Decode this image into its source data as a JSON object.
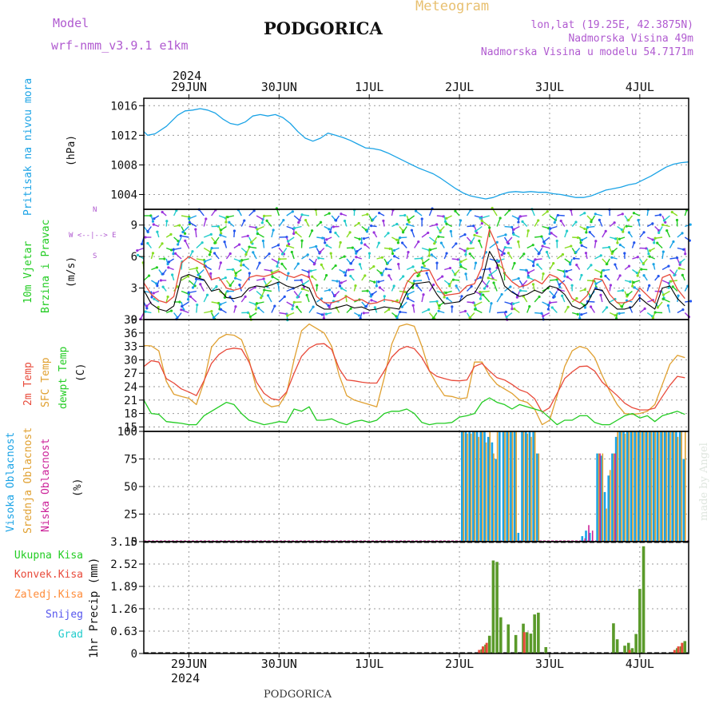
{
  "header": {
    "model_label": "Model",
    "model_name": "wrf-nmm_v3.9.1 e1km",
    "station": "PODGORICA",
    "meteogram": "Meteogram",
    "coords": "lon,lat (19.25E, 42.3875N)",
    "altitude": "Nadmorska Visina 49m",
    "model_altitude": "Nadmorska Visina u modelu 54.7171m",
    "footer_station": "PODGORICA",
    "credit": "made by Angel"
  },
  "colors": {
    "pressure": "#1aa3e6",
    "wind_speed": "#000000",
    "wind_gust": "#e84a3a",
    "t2m": "#e84a3a",
    "tsfc": "#e0a030",
    "dewpt": "#22cc22",
    "cloud_high": "#1aa3e6",
    "cloud_mid": "#e0a030",
    "cloud_low": "#cc2299",
    "precip_total": "#5a9a2a",
    "precip_conv": "#e84a3a"
  },
  "time_axis": {
    "year": "2024",
    "day_labels": [
      "29JUN",
      "30JUN",
      "1JUL",
      "2JUL",
      "3JUL",
      "4JUL"
    ],
    "day_positions_h": [
      12,
      36,
      60,
      84,
      108,
      132
    ],
    "range_h": [
      0,
      145
    ]
  },
  "panels": {
    "pressure": {
      "labels": [
        "Pritisak na nivou mora"
      ],
      "unit": "(hPa)",
      "yticks": [
        "1004",
        "1008",
        "1012",
        "1016"
      ]
    },
    "wind": {
      "labels": [
        "10m Vjetar",
        "Brzina i Pravac"
      ],
      "unit": "(m/s)",
      "yticks": [
        "0",
        "3",
        "6",
        "9"
      ],
      "compass_lines": [
        "N",
        "^",
        "|",
        "W <--|--> E",
        "|",
        "v",
        "S"
      ]
    },
    "temperature": {
      "labels": [
        "2m Temp",
        "SFC Temp",
        "dewpt Temp"
      ],
      "unit": "(C)",
      "yticks": [
        "15",
        "18",
        "21",
        "24",
        "27",
        "30",
        "33",
        "36",
        "39"
      ]
    },
    "cloud": {
      "labels": [
        "Visoka Oblacnost",
        "Srednja Oblacnost",
        "Niska Oblacnost"
      ],
      "unit": "(%)",
      "yticks": [
        "0",
        "25",
        "50",
        "75",
        "100"
      ]
    },
    "precip": {
      "legend": [
        "Ukupna Kisa",
        "Konvek.Kisa",
        "Zaledj.Kisa",
        "Snijeg",
        "Grad"
      ],
      "legend_colors": [
        "#22cc22",
        "#e84a3a",
        "#ff8c3a",
        "#5555ee",
        "#22cccc"
      ],
      "axis_label": "1hr Precip (mm)",
      "yticks": [
        "0",
        "0.63",
        "1.26",
        "1.89",
        "2.52",
        "3.15"
      ]
    }
  },
  "chart_data": [
    {
      "type": "line",
      "title": "Pritisak na nivou mora",
      "ylabel": "(hPa)",
      "ylim": [
        1002,
        1017
      ],
      "x": [
        0,
        1,
        3,
        6,
        9,
        11,
        13,
        15,
        17,
        19,
        21,
        23,
        25,
        27,
        29,
        31,
        33,
        35,
        37,
        39,
        41,
        43,
        45,
        47,
        49,
        51,
        53,
        55,
        57,
        59,
        61,
        63,
        65,
        67,
        69,
        71,
        73,
        75,
        77,
        79,
        81,
        83,
        85,
        87,
        89,
        91,
        93,
        95,
        97,
        99,
        101,
        103,
        105,
        107,
        109,
        111,
        113,
        115,
        117,
        119,
        121,
        123,
        125,
        127,
        129,
        131,
        133,
        135,
        137,
        139,
        141,
        143,
        145
      ],
      "series": [
        {
          "values": [
            1012.5,
            1012.0,
            1012.2,
            1013.2,
            1014.7,
            1015.3,
            1015.4,
            1015.6,
            1015.4,
            1015.0,
            1014.2,
            1013.6,
            1013.4,
            1013.8,
            1014.6,
            1014.8,
            1014.6,
            1014.8,
            1014.4,
            1013.6,
            1012.5,
            1011.6,
            1011.2,
            1011.6,
            1012.3,
            1012.0,
            1011.7,
            1011.3,
            1010.8,
            1010.3,
            1010.2,
            1010.0,
            1009.6,
            1009.1,
            1008.6,
            1008.1,
            1007.6,
            1007.2,
            1006.8,
            1006.2,
            1005.5,
            1004.8,
            1004.2,
            1003.8,
            1003.6,
            1003.4,
            1003.6,
            1004.0,
            1004.3,
            1004.4,
            1004.3,
            1004.4,
            1004.3,
            1004.3,
            1004.1,
            1004.0,
            1003.8,
            1003.6,
            1003.6,
            1003.8,
            1004.2,
            1004.6,
            1004.8,
            1005.0,
            1005.3,
            1005.5,
            1006.0,
            1006.5,
            1007.1,
            1007.7,
            1008.1,
            1008.3,
            1008.4
          ]
        }
      ]
    },
    {
      "type": "line",
      "title": "10m Vjetar Brzina i Pravac",
      "ylabel": "(m/s)",
      "ylim": [
        0,
        10.5
      ],
      "x": [
        0,
        2,
        4,
        6,
        8,
        10,
        12,
        14,
        16,
        18,
        20,
        22,
        24,
        26,
        28,
        30,
        32,
        34,
        36,
        38,
        40,
        42,
        44,
        46,
        48,
        50,
        52,
        54,
        56,
        58,
        60,
        62,
        64,
        66,
        68,
        70,
        72,
        74,
        76,
        78,
        80,
        82,
        84,
        86,
        88,
        90,
        92,
        94,
        96,
        98,
        100,
        102,
        104,
        106,
        108,
        110,
        112,
        114,
        116,
        118,
        120,
        122,
        124,
        126,
        128,
        130,
        132,
        134,
        136,
        138,
        140,
        142,
        144
      ],
      "series": [
        {
          "values": [
            2.8,
            1.5,
            1.0,
            0.8,
            1.3,
            4.0,
            4.3,
            4.0,
            3.8,
            2.7,
            2.9,
            2.1,
            2.0,
            2.2,
            3.0,
            3.2,
            3.1,
            3.3,
            3.6,
            3.2,
            3.0,
            3.3,
            3.0,
            1.4,
            1.0,
            1.0,
            1.2,
            1.4,
            1.1,
            1.2,
            0.9,
            1.0,
            1.2,
            1.1,
            1.0,
            2.6,
            3.4,
            3.5,
            3.6,
            2.4,
            1.5,
            1.6,
            1.7,
            2.3,
            2.5,
            3.7,
            6.5,
            5.3,
            3.2,
            2.6,
            2.2,
            2.4,
            2.8,
            2.5,
            3.2,
            3.0,
            2.4,
            1.3,
            1.0,
            1.5,
            2.9,
            2.8,
            1.6,
            1.0,
            1.0,
            1.2,
            2.1,
            1.5,
            1.0,
            3.0,
            3.2,
            2.0,
            1.3
          ]
        },
        {
          "values": [
            3.5,
            2.4,
            1.8,
            1.6,
            2.2,
            5.4,
            6.0,
            5.6,
            5.2,
            3.8,
            4.0,
            3.0,
            2.8,
            3.0,
            4.0,
            4.2,
            4.1,
            4.3,
            4.6,
            4.2,
            4.0,
            4.3,
            4.0,
            2.2,
            1.6,
            1.6,
            1.8,
            2.2,
            1.8,
            1.9,
            1.5,
            1.6,
            1.9,
            1.8,
            1.6,
            3.5,
            4.4,
            4.6,
            4.7,
            3.3,
            2.3,
            2.4,
            2.5,
            3.2,
            3.4,
            5.0,
            8.6,
            7.0,
            4.4,
            3.6,
            3.1,
            3.3,
            3.8,
            3.4,
            4.3,
            4.0,
            3.3,
            2.0,
            1.6,
            2.3,
            3.9,
            3.8,
            2.4,
            1.6,
            1.6,
            1.9,
            3.0,
            2.3,
            1.6,
            4.0,
            4.3,
            2.9,
            2.0
          ]
        }
      ]
    },
    {
      "type": "line",
      "title": "2m Temp / SFC Temp / dewpt Temp",
      "ylabel": "(C)",
      "ylim": [
        14,
        39
      ],
      "x": [
        0,
        2,
        4,
        6,
        8,
        10,
        12,
        14,
        16,
        18,
        20,
        22,
        24,
        26,
        28,
        30,
        32,
        34,
        36,
        38,
        40,
        42,
        44,
        46,
        48,
        50,
        52,
        54,
        56,
        58,
        60,
        62,
        64,
        66,
        68,
        70,
        72,
        74,
        76,
        78,
        80,
        82,
        84,
        86,
        88,
        90,
        92,
        94,
        96,
        98,
        100,
        102,
        104,
        106,
        108,
        110,
        112,
        114,
        116,
        118,
        120,
        122,
        124,
        126,
        128,
        130,
        132,
        134,
        136,
        138,
        140,
        142,
        144
      ],
      "series": [
        {
          "values": [
            28.5,
            29.8,
            29.5,
            25.8,
            24.8,
            23.5,
            22.8,
            22.0,
            25.3,
            29.2,
            31.2,
            32.3,
            32.6,
            32.4,
            29.5,
            25.0,
            22.5,
            21.3,
            21.0,
            22.8,
            27.0,
            30.8,
            32.6,
            33.5,
            33.6,
            32.3,
            28.0,
            25.5,
            25.3,
            25.0,
            24.8,
            24.8,
            27.5,
            30.6,
            32.3,
            33.0,
            32.5,
            30.5,
            27.5,
            26.3,
            25.8,
            25.4,
            25.3,
            25.5,
            28.5,
            29.2,
            27.5,
            26.0,
            25.5,
            24.5,
            23.3,
            22.7,
            21.3,
            18.3,
            19.3,
            22.5,
            25.8,
            27.3,
            28.5,
            28.6,
            27.5,
            25.0,
            23.5,
            22.0,
            20.3,
            19.3,
            18.8,
            18.8,
            19.2,
            21.8,
            24.3,
            26.3,
            26.0
          ]
        },
        {
          "values": [
            33.2,
            33.1,
            32.0,
            25.2,
            22.3,
            21.8,
            21.4,
            20.0,
            25.0,
            32.8,
            34.8,
            35.7,
            35.5,
            34.5,
            30.0,
            23.5,
            20.5,
            19.5,
            19.8,
            22.5,
            30.0,
            36.5,
            38.0,
            37.0,
            36.0,
            33.0,
            26.5,
            22.0,
            21.0,
            20.5,
            20.0,
            19.5,
            26.0,
            33.5,
            37.5,
            38.0,
            37.5,
            33.0,
            27.5,
            24.5,
            22.0,
            21.8,
            21.3,
            21.5,
            29.5,
            29.5,
            26.5,
            24.5,
            23.5,
            22.5,
            21.0,
            20.5,
            19.0,
            15.5,
            16.5,
            22.0,
            28.5,
            32.0,
            33.0,
            32.5,
            30.5,
            26.5,
            23.0,
            20.0,
            18.0,
            17.8,
            18.0,
            18.5,
            20.0,
            24.5,
            29.0,
            31.0,
            30.5
          ]
        },
        {
          "values": [
            21.0,
            18.0,
            17.8,
            16.2,
            16.0,
            15.8,
            15.5,
            15.5,
            17.5,
            18.5,
            19.5,
            20.5,
            20.0,
            18.0,
            16.5,
            16.0,
            15.5,
            15.8,
            16.2,
            16.0,
            19.0,
            18.5,
            19.5,
            16.5,
            16.5,
            16.8,
            16.0,
            15.5,
            16.2,
            16.5,
            16.0,
            16.5,
            18.0,
            18.5,
            18.5,
            19.0,
            18.0,
            16.0,
            15.5,
            15.8,
            15.8,
            16.0,
            17.2,
            17.5,
            18.0,
            20.5,
            21.5,
            20.5,
            20.0,
            19.0,
            20.0,
            19.5,
            19.0,
            18.5,
            17.0,
            15.5,
            16.5,
            16.5,
            17.5,
            17.5,
            16.0,
            15.5,
            15.5,
            16.5,
            17.5,
            18.0,
            17.0,
            17.5,
            16.2,
            17.5,
            18.0,
            18.5,
            17.8
          ]
        }
      ]
    },
    {
      "type": "bar",
      "title": "Visoka / Srednja / Niska Oblacnost",
      "ylabel": "(%)",
      "ylim": [
        0,
        100
      ],
      "x": [
        85,
        86,
        87,
        88,
        89,
        90,
        91,
        92,
        93,
        94,
        95,
        96,
        97,
        98,
        99,
        100,
        101,
        102,
        103,
        104,
        105,
        106,
        117,
        118,
        119,
        120,
        121,
        122,
        123,
        124,
        125,
        126,
        127,
        128,
        129,
        130,
        131,
        132,
        133,
        134,
        135,
        136,
        137,
        138,
        139,
        140,
        141,
        142,
        143,
        144
      ],
      "series": [
        {
          "values": [
            100,
            100,
            100,
            100,
            100,
            100,
            100,
            95,
            90,
            75,
            100,
            100,
            100,
            100,
            100,
            8,
            100,
            100,
            100,
            100,
            80,
            0,
            5,
            10,
            8,
            0,
            80,
            78,
            45,
            60,
            80,
            95,
            100,
            100,
            100,
            100,
            100,
            100,
            100,
            100,
            100,
            100,
            100,
            100,
            100,
            100,
            100,
            100,
            100,
            75
          ]
        },
        {
          "values": [
            100,
            98,
            98,
            100,
            95,
            100,
            90,
            100,
            80,
            100,
            0,
            100,
            100,
            100,
            100,
            0,
            100,
            98,
            95,
            100,
            80,
            0,
            0,
            0,
            0,
            0,
            80,
            80,
            30,
            65,
            80,
            100,
            100,
            98,
            100,
            100,
            100,
            100,
            100,
            100,
            100,
            100,
            100,
            100,
            100,
            100,
            100,
            95,
            100,
            100
          ]
        },
        {
          "values": [
            0,
            0,
            0,
            0,
            0,
            0,
            0,
            0,
            0,
            0,
            0,
            0,
            0,
            0,
            0,
            0,
            0,
            0,
            0,
            0,
            0,
            0,
            3,
            15,
            10,
            0,
            80,
            0,
            0,
            0,
            80,
            0,
            0,
            0,
            0,
            0,
            0,
            0,
            0,
            0,
            0,
            0,
            0,
            0,
            0,
            0,
            0,
            0,
            0,
            0
          ]
        }
      ]
    },
    {
      "type": "bar",
      "title": "1hr Precip",
      "ylabel": "1hr Precip (mm)",
      "ylim": [
        0,
        3.15
      ],
      "x": [
        90,
        91,
        92,
        93,
        94,
        95,
        96,
        97,
        98,
        99,
        100,
        101,
        102,
        103,
        104,
        105,
        106,
        107,
        125,
        126,
        127,
        128,
        129,
        130,
        131,
        132,
        133,
        142,
        143,
        144
      ],
      "series": [
        {
          "name": "Ukupna Kisa",
          "values": [
            0.12,
            0.25,
            0.5,
            2.62,
            2.58,
            1.02,
            0.0,
            0.82,
            0.0,
            0.52,
            0.0,
            0.84,
            0.6,
            0.56,
            1.1,
            1.15,
            0.0,
            0.18,
            0.85,
            0.4,
            0.0,
            0.22,
            0.3,
            0.15,
            0.55,
            1.82,
            3.02,
            0.15,
            0.2,
            0.35
          ]
        },
        {
          "name": "Konvek.Kisa",
          "values": [
            0.1,
            0.2,
            0.3,
            0.0,
            0.0,
            0.0,
            0.0,
            0.0,
            0.0,
            0.0,
            0.0,
            0.0,
            0.6,
            0.0,
            0.0,
            0.0,
            0.0,
            0.0,
            0.0,
            0.0,
            0.0,
            0.0,
            0.0,
            0.1,
            0.0,
            0.0,
            0.0,
            0.1,
            0.2,
            0.3
          ]
        }
      ]
    }
  ]
}
